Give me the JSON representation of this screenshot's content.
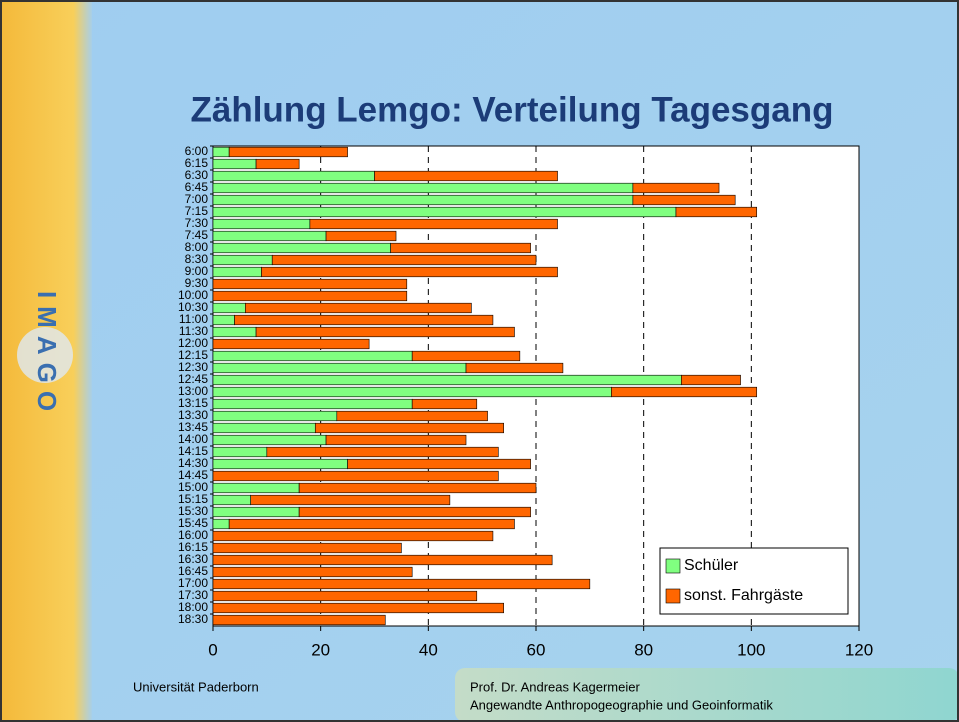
{
  "logo": "IMAGO",
  "footer": {
    "left": "Universität Paderborn",
    "right": [
      "Prof. Dr. Andreas Kagermeier",
      "Angewandte Anthropogeographie und Geoinformatik"
    ]
  },
  "chart_data": {
    "type": "bar",
    "orientation": "horizontal",
    "stacked": true,
    "title": "Zählung Lemgo: Verteilung Tagesgang",
    "categories": [
      "6:00",
      "6:15",
      "6:30",
      "6:45",
      "7:00",
      "7:15",
      "7:30",
      "7:45",
      "8:00",
      "8:30",
      "9:00",
      "9:30",
      "10:00",
      "10:30",
      "11:00",
      "11:30",
      "12:00",
      "12:15",
      "12:30",
      "12:45",
      "13:00",
      "13:15",
      "13:30",
      "13:45",
      "14:00",
      "14:15",
      "14:30",
      "14:45",
      "15:00",
      "15:15",
      "15:30",
      "15:45",
      "16:00",
      "16:15",
      "16:30",
      "16:45",
      "17:00",
      "17:30",
      "18:00",
      "18:30"
    ],
    "series": [
      {
        "name": "Schüler",
        "color": "#80ff80",
        "values": [
          3,
          8,
          30,
          78,
          78,
          86,
          18,
          21,
          33,
          11,
          9,
          0,
          0,
          6,
          4,
          8,
          0,
          37,
          47,
          87,
          74,
          37,
          23,
          19,
          21,
          10,
          25,
          0,
          16,
          7,
          16,
          3,
          0,
          0,
          0,
          0,
          0,
          0,
          0,
          0
        ]
      },
      {
        "name": "sonst. Fahrgäste",
        "color": "#ff6600",
        "values": [
          22,
          8,
          34,
          16,
          19,
          15,
          46,
          13,
          26,
          49,
          55,
          36,
          36,
          42,
          48,
          48,
          29,
          20,
          18,
          11,
          27,
          12,
          28,
          35,
          26,
          43,
          34,
          53,
          44,
          37,
          43,
          53,
          52,
          35,
          63,
          37,
          70,
          49,
          54,
          32
        ]
      }
    ],
    "xlim": [
      0,
      120
    ],
    "xticks": [
      0,
      20,
      40,
      60,
      80,
      100,
      120
    ],
    "grid": true,
    "legend": "lower right"
  }
}
